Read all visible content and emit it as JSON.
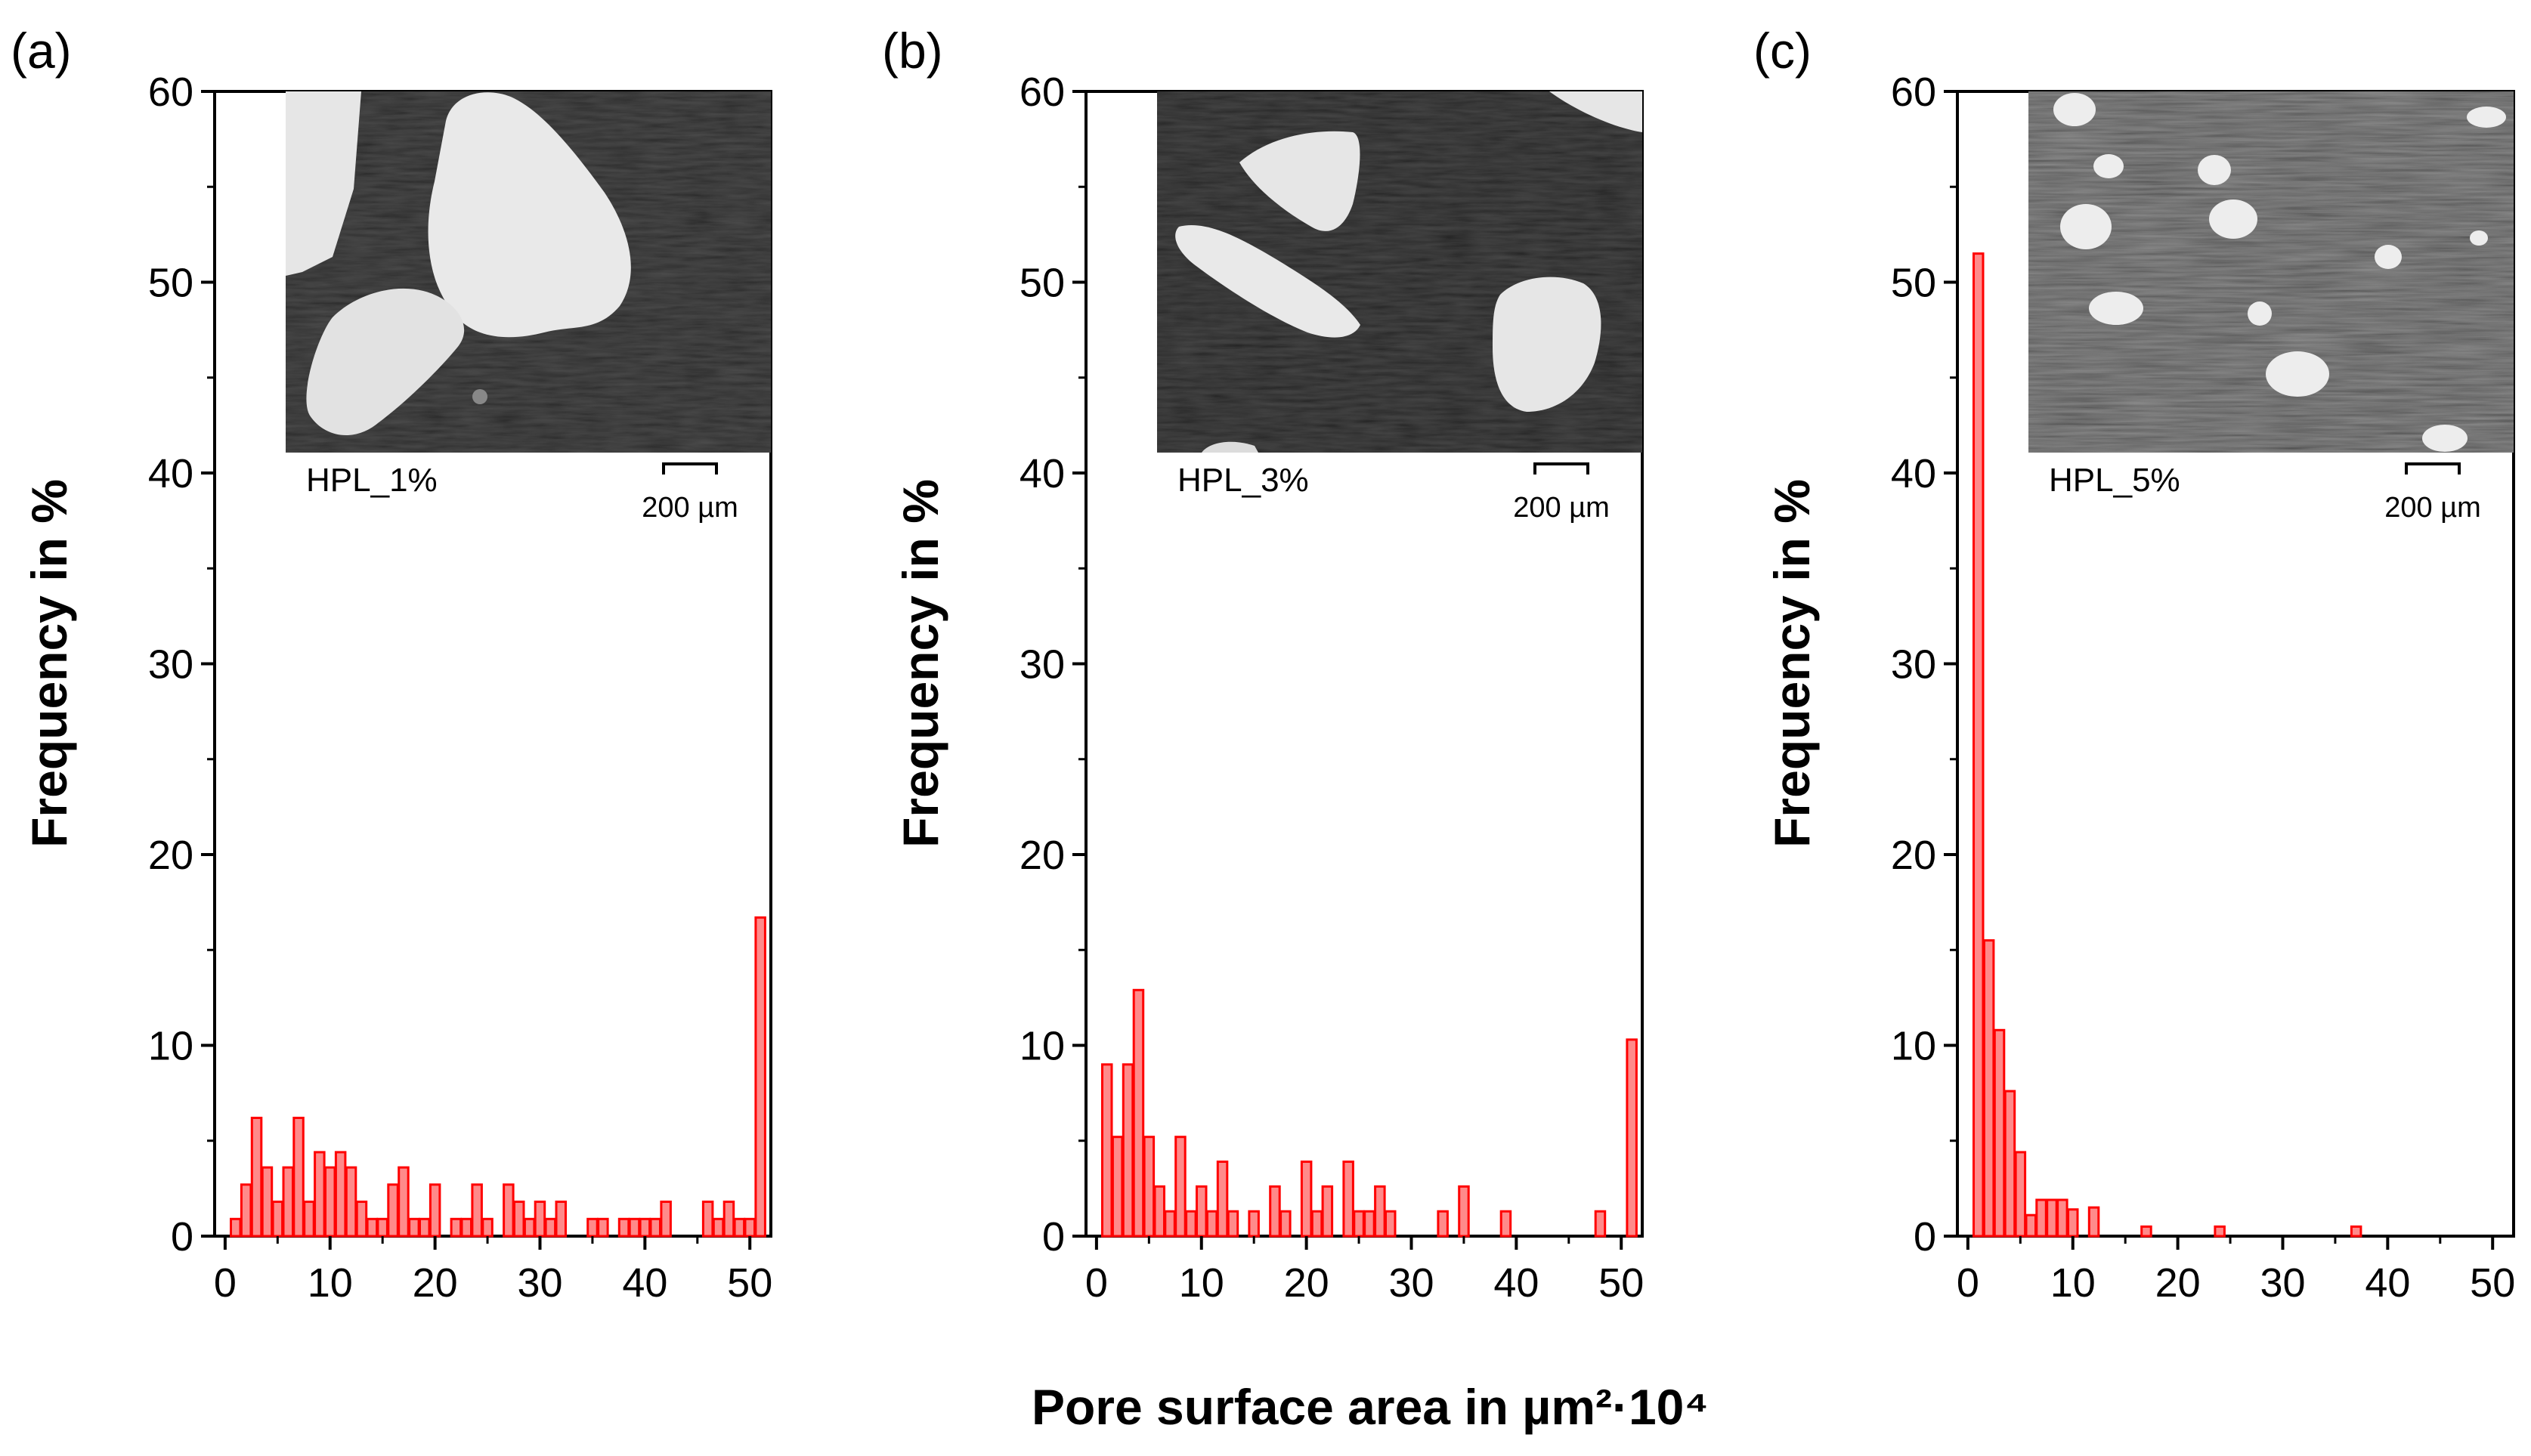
{
  "shared_xlabel": "Pore surface area in µm²·10⁴",
  "chart_data": [
    {
      "type": "bar",
      "panel": "(a)",
      "title": "",
      "ylabel": "Frequency in %",
      "xlim": [
        -1,
        52
      ],
      "ylim": [
        0,
        60
      ],
      "xticks": [
        0,
        10,
        20,
        30,
        40,
        50
      ],
      "yticks": [
        0,
        10,
        20,
        30,
        40,
        50,
        60
      ],
      "bar_width": 0.9,
      "inset": {
        "label": "HPL_1%",
        "scale_bar": "200 µm"
      },
      "x": [
        1,
        2,
        3,
        4,
        5,
        6,
        7,
        8,
        9,
        10,
        11,
        12,
        13,
        14,
        15,
        16,
        17,
        18,
        19,
        20,
        22,
        23,
        24,
        25,
        27,
        28,
        29,
        30,
        31,
        32,
        35,
        36,
        38,
        39,
        40,
        41,
        42,
        46,
        47,
        48,
        49,
        50,
        51
      ],
      "values": [
        0.9,
        2.7,
        6.2,
        3.6,
        1.8,
        3.6,
        6.2,
        1.8,
        4.4,
        3.6,
        4.4,
        3.6,
        1.8,
        0.9,
        0.9,
        2.7,
        3.6,
        0.9,
        0.9,
        2.7,
        0.9,
        0.9,
        2.7,
        0.9,
        2.7,
        1.8,
        0.9,
        1.8,
        0.9,
        1.8,
        0.9,
        0.9,
        0.9,
        0.9,
        0.9,
        0.9,
        1.8,
        1.8,
        0.9,
        1.8,
        0.9,
        0.9,
        16.7
      ]
    },
    {
      "type": "bar",
      "panel": "(b)",
      "title": "",
      "ylabel": "Frequency in %",
      "xlim": [
        -1,
        52
      ],
      "ylim": [
        0,
        60
      ],
      "xticks": [
        0,
        10,
        20,
        30,
        40,
        50
      ],
      "yticks": [
        0,
        10,
        20,
        30,
        40,
        50,
        60
      ],
      "bar_width": 0.9,
      "inset": {
        "label": "HPL_3%",
        "scale_bar": "200 µm"
      },
      "x": [
        1,
        2,
        3,
        4,
        5,
        6,
        7,
        8,
        9,
        10,
        11,
        12,
        13,
        15,
        17,
        18,
        20,
        21,
        22,
        24,
        25,
        26,
        27,
        28,
        33,
        35,
        39,
        48,
        51
      ],
      "values": [
        9.0,
        5.2,
        9.0,
        12.9,
        5.2,
        2.6,
        1.3,
        5.2,
        1.3,
        2.6,
        1.3,
        3.9,
        1.3,
        1.3,
        2.6,
        1.3,
        3.9,
        1.3,
        2.6,
        3.9,
        1.3,
        1.3,
        2.6,
        1.3,
        1.3,
        2.6,
        1.3,
        1.3,
        10.3
      ]
    },
    {
      "type": "bar",
      "panel": "(c)",
      "title": "",
      "ylabel": "Frequency in %",
      "xlim": [
        -1,
        52
      ],
      "ylim": [
        0,
        60
      ],
      "xticks": [
        0,
        10,
        20,
        30,
        40,
        50
      ],
      "yticks": [
        0,
        10,
        20,
        30,
        40,
        50,
        60
      ],
      "bar_width": 0.9,
      "inset": {
        "label": "HPL_5%",
        "scale_bar": "200 µm"
      },
      "x": [
        1,
        2,
        3,
        4,
        5,
        6,
        7,
        8,
        9,
        10,
        12,
        17,
        24,
        37
      ],
      "values": [
        51.5,
        15.5,
        10.8,
        7.6,
        4.4,
        1.1,
        1.9,
        1.9,
        1.9,
        1.4,
        1.5,
        0.5,
        0.5,
        0.5
      ]
    }
  ]
}
